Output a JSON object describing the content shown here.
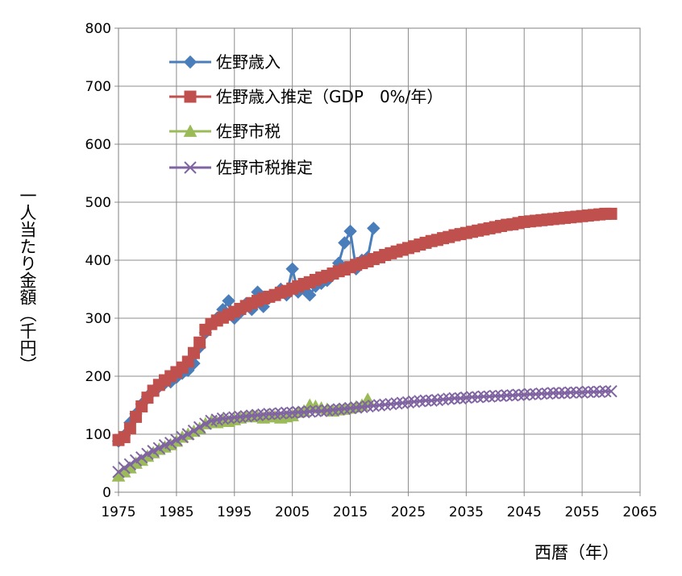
{
  "chart_data": {
    "type": "line",
    "xlabel": "西暦（年）",
    "ylabel": "一人当たり金額（千円）",
    "xlim": [
      1975,
      2065
    ],
    "ylim": [
      0,
      800
    ],
    "xticks": [
      "1975",
      "1985",
      "1995",
      "2005",
      "2015",
      "2025",
      "2035",
      "2045",
      "2055",
      "2065"
    ],
    "yticks": [
      "0",
      "100",
      "200",
      "300",
      "400",
      "500",
      "600",
      "700",
      "800"
    ],
    "grid": true,
    "legend_position": "top-left",
    "series": [
      {
        "name": "佐野歳入",
        "color": "#4A7EBB",
        "marker": "diamond",
        "x": [
          1975,
          1976,
          1977,
          1978,
          1979,
          1980,
          1981,
          1982,
          1983,
          1984,
          1985,
          1986,
          1987,
          1988,
          1989,
          1990,
          1991,
          1992,
          1993,
          1994,
          1995,
          1996,
          1997,
          1998,
          1999,
          2000,
          2001,
          2002,
          2003,
          2004,
          2005,
          2006,
          2007,
          2008,
          2009,
          2010,
          2011,
          2012,
          2013,
          2014,
          2015,
          2016,
          2017,
          2018,
          2019
        ],
        "y": [
          88,
          98,
          120,
          135,
          152,
          165,
          175,
          182,
          188,
          190,
          198,
          205,
          210,
          222,
          250,
          275,
          290,
          300,
          315,
          330,
          300,
          310,
          325,
          315,
          345,
          320,
          335,
          340,
          350,
          340,
          385,
          345,
          350,
          340,
          355,
          360,
          365,
          375,
          395,
          430,
          450,
          385,
          400,
          405,
          455
        ]
      },
      {
        "name": "佐野歳入推定（GDP　0%/年）",
        "color": "#C0504D",
        "marker": "square",
        "x": [
          1975,
          1976,
          1977,
          1978,
          1979,
          1980,
          1981,
          1982,
          1983,
          1984,
          1985,
          1986,
          1987,
          1988,
          1989,
          1990,
          1991,
          1992,
          1993,
          1994,
          1995,
          1996,
          1997,
          1998,
          1999,
          2000,
          2001,
          2002,
          2003,
          2004,
          2005,
          2006,
          2007,
          2008,
          2009,
          2010,
          2011,
          2012,
          2013,
          2014,
          2015,
          2016,
          2017,
          2018,
          2019,
          2020,
          2021,
          2022,
          2023,
          2024,
          2025,
          2026,
          2027,
          2028,
          2029,
          2030,
          2031,
          2032,
          2033,
          2034,
          2035,
          2036,
          2037,
          2038,
          2039,
          2040,
          2041,
          2042,
          2043,
          2044,
          2045,
          2046,
          2047,
          2048,
          2049,
          2050,
          2051,
          2052,
          2053,
          2054,
          2055,
          2056,
          2057,
          2058,
          2059,
          2060
        ],
        "y": [
          90,
          95,
          110,
          130,
          148,
          163,
          175,
          185,
          193,
          200,
          207,
          215,
          225,
          240,
          258,
          280,
          290,
          296,
          301,
          306,
          311,
          316,
          321,
          326,
          330,
          334,
          337,
          340,
          344,
          347,
          351,
          355,
          359,
          362,
          366,
          370,
          373,
          377,
          381,
          384,
          388,
          392,
          395,
          398,
          402,
          405,
          409,
          412,
          415,
          418,
          421,
          424,
          427,
          430,
          433,
          435,
          438,
          440,
          443,
          445,
          447,
          449,
          451,
          453,
          455,
          457,
          459,
          461,
          462,
          464,
          466,
          467,
          468,
          469,
          470,
          471,
          472,
          473,
          474,
          475,
          476,
          477,
          478,
          479,
          480,
          480
        ]
      },
      {
        "name": "佐野市税",
        "color": "#9BBB59",
        "marker": "triangle",
        "x": [
          1975,
          1976,
          1977,
          1978,
          1979,
          1980,
          1981,
          1982,
          1983,
          1984,
          1985,
          1986,
          1987,
          1988,
          1989,
          1990,
          1991,
          1992,
          1993,
          1994,
          1995,
          1996,
          1997,
          1998,
          1999,
          2000,
          2001,
          2002,
          2003,
          2004,
          2005,
          2006,
          2007,
          2008,
          2009,
          2010,
          2011,
          2012,
          2013,
          2014,
          2015,
          2016,
          2017,
          2018
        ],
        "y": [
          28,
          35,
          42,
          50,
          55,
          62,
          68,
          74,
          78,
          82,
          88,
          95,
          100,
          105,
          110,
          118,
          122,
          120,
          125,
          122,
          125,
          128,
          130,
          132,
          130,
          128,
          130,
          130,
          128,
          130,
          132,
          138,
          140,
          150,
          148,
          145,
          143,
          140,
          142,
          143,
          145,
          147,
          150,
          160
        ]
      },
      {
        "name": "佐野市税推定",
        "color": "#8064A2",
        "marker": "x",
        "x": [
          1975,
          1976,
          1977,
          1978,
          1979,
          1980,
          1981,
          1982,
          1983,
          1984,
          1985,
          1986,
          1987,
          1988,
          1989,
          1990,
          1991,
          1992,
          1993,
          1994,
          1995,
          1996,
          1997,
          1998,
          1999,
          2000,
          2001,
          2002,
          2003,
          2004,
          2005,
          2006,
          2007,
          2008,
          2009,
          2010,
          2011,
          2012,
          2013,
          2014,
          2015,
          2016,
          2017,
          2018,
          2019,
          2020,
          2021,
          2022,
          2023,
          2024,
          2025,
          2026,
          2027,
          2028,
          2029,
          2030,
          2031,
          2032,
          2033,
          2034,
          2035,
          2036,
          2037,
          2038,
          2039,
          2040,
          2041,
          2042,
          2043,
          2044,
          2045,
          2046,
          2047,
          2048,
          2049,
          2050,
          2051,
          2052,
          2053,
          2054,
          2055,
          2056,
          2057,
          2058,
          2059,
          2060
        ],
        "y": [
          35,
          42,
          48,
          55,
          60,
          66,
          71,
          76,
          81,
          85,
          90,
          95,
          100,
          106,
          112,
          118,
          123,
          125,
          127,
          128,
          129,
          130,
          131,
          132,
          133,
          134,
          135,
          135,
          136,
          137,
          137,
          138,
          138,
          139,
          140,
          140,
          141,
          142,
          143,
          144,
          145,
          146,
          147,
          148,
          149,
          150,
          151,
          152,
          153,
          154,
          155,
          156,
          157,
          158,
          158,
          159,
          160,
          161,
          162,
          162,
          163,
          164,
          164,
          165,
          165,
          166,
          166,
          167,
          167,
          168,
          168,
          169,
          169,
          170,
          170,
          171,
          171,
          171,
          172,
          172,
          172,
          173,
          173,
          173,
          174,
          174
        ]
      }
    ]
  }
}
